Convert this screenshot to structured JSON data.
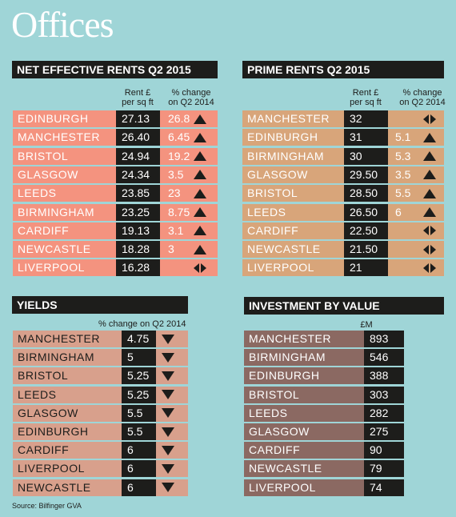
{
  "title": "Offices",
  "tables": [
    {
      "title": "NET EFFECTIVE RENTS Q2 2015",
      "columns": [
        [
          "Rent £",
          "per sq ft"
        ],
        [
          "% change",
          "on Q2 2014"
        ]
      ],
      "rows": [
        {
          "name": "EDINBURGH",
          "value": "27.13",
          "change": "26.8",
          "trend": "up"
        },
        {
          "name": "MANCHESTER",
          "value": "26.40",
          "change": "6.45",
          "trend": "up"
        },
        {
          "name": "BRISTOL",
          "value": "24.94",
          "change": "19.2",
          "trend": "up"
        },
        {
          "name": "GLASGOW",
          "value": "24.34",
          "change": "3.5",
          "trend": "up"
        },
        {
          "name": "LEEDS",
          "value": "23.85",
          "change": "23",
          "trend": "up"
        },
        {
          "name": "BIRMINGHAM",
          "value": "23.25",
          "change": "8.75",
          "trend": "up"
        },
        {
          "name": "CARDIFF",
          "value": "19.13",
          "change": "3.1",
          "trend": "up"
        },
        {
          "name": "NEWCASTLE",
          "value": "18.28",
          "change": "3",
          "trend": "up"
        },
        {
          "name": "LIVERPOOL",
          "value": "16.28",
          "trend": "flat"
        }
      ]
    },
    {
      "title": "PRIME RENTS Q2 2015",
      "columns": [
        [
          "Rent £",
          "per sq ft"
        ],
        [
          "% change",
          "on Q2 2014"
        ]
      ],
      "rows": [
        {
          "name": "MANCHESTER",
          "value": "32",
          "trend": "flat"
        },
        {
          "name": "EDINBURGH",
          "value": "31",
          "change": "5.1",
          "trend": "up"
        },
        {
          "name": "BIRMINGHAM",
          "value": "30",
          "change": "5.3",
          "trend": "up"
        },
        {
          "name": "GLASGOW",
          "value": "29.50",
          "change": "3.5",
          "trend": "up"
        },
        {
          "name": "BRISTOL",
          "value": "28.50",
          "change": "5.5",
          "trend": "up"
        },
        {
          "name": "LEEDS",
          "value": "26.50",
          "change": "6",
          "trend": "up"
        },
        {
          "name": "CARDIFF",
          "value": "22.50",
          "trend": "flat"
        },
        {
          "name": "NEWCASTLE",
          "value": "21.50",
          "trend": "flat"
        },
        {
          "name": "LIVERPOOL",
          "value": "21",
          "trend": "flat"
        }
      ]
    },
    {
      "title": "YIELDS",
      "columns": [
        [
          "% change on Q2 2014"
        ]
      ],
      "rows": [
        {
          "name": "MANCHESTER",
          "value": "4.75",
          "trend": "down"
        },
        {
          "name": "BIRMINGHAM",
          "value": "5",
          "trend": "down"
        },
        {
          "name": "BRISTOL",
          "value": "5.25",
          "trend": "down"
        },
        {
          "name": "LEEDS",
          "value": "5.25",
          "trend": "down"
        },
        {
          "name": "GLASGOW",
          "value": "5.5",
          "trend": "down"
        },
        {
          "name": "EDINBURGH",
          "value": "5.5",
          "trend": "down"
        },
        {
          "name": "CARDIFF",
          "value": "6",
          "trend": "down"
        },
        {
          "name": "LIVERPOOL",
          "value": "6",
          "trend": "down"
        },
        {
          "name": "NEWCASTLE",
          "value": "6",
          "trend": "down"
        }
      ]
    },
    {
      "title": "INVESTMENT BY VALUE",
      "columns": [
        [
          "£M"
        ]
      ],
      "rows": [
        {
          "name": "MANCHESTER",
          "value": "893"
        },
        {
          "name": "BIRMINGHAM",
          "value": "546"
        },
        {
          "name": "EDINBURGH",
          "value": "388"
        },
        {
          "name": "BRISTOL",
          "value": "303"
        },
        {
          "name": "LEEDS",
          "value": "282"
        },
        {
          "name": "GLASGOW",
          "value": "275"
        },
        {
          "name": "CARDIFF",
          "value": "90"
        },
        {
          "name": "NEWCASTLE",
          "value": "79"
        },
        {
          "name": "LIVERPOOL",
          "value": "74"
        }
      ]
    }
  ],
  "source": "Source: Bilfinger GVA"
}
